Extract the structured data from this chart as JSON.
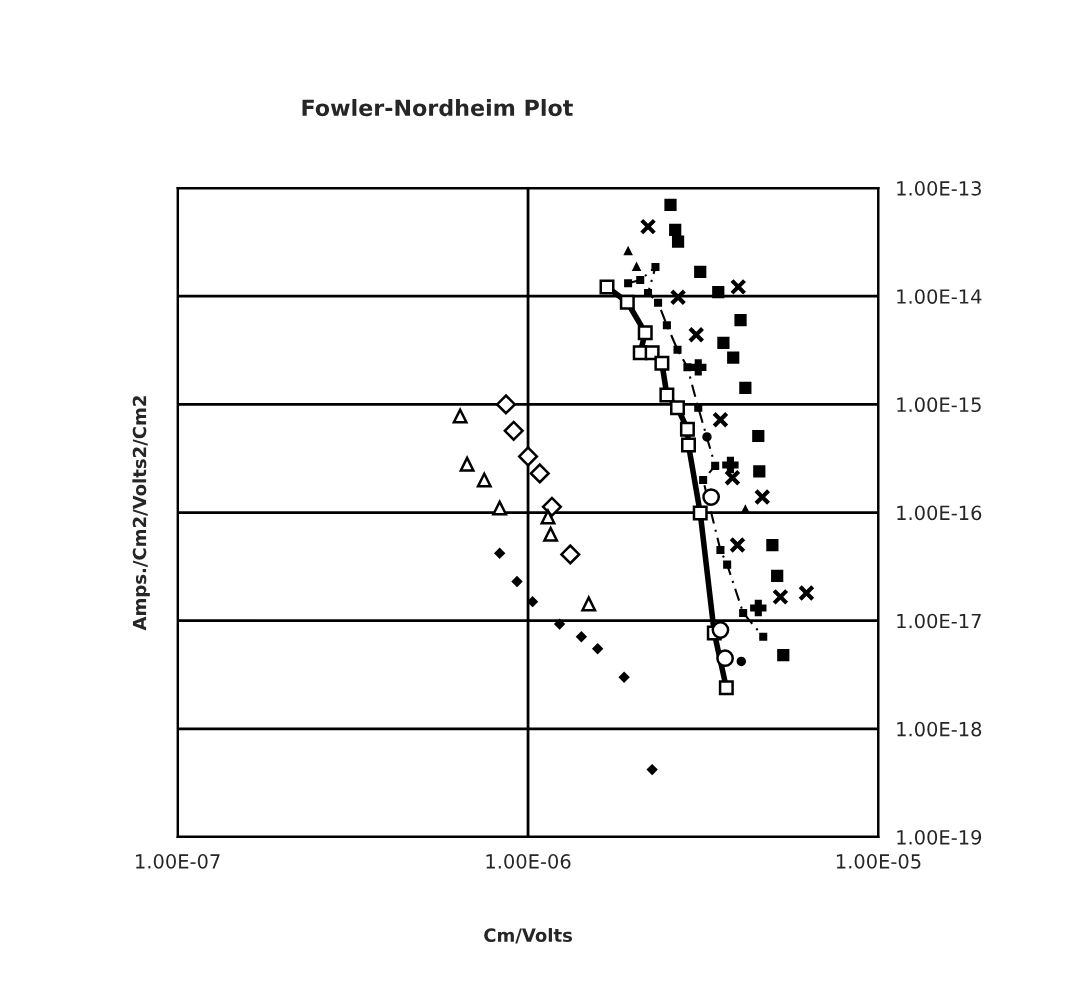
{
  "chart_data": {
    "type": "scatter",
    "title": "Fowler-Nordheim Plot",
    "xlabel": "Cm/Volts",
    "ylabel": "Amps./Cm2/Volts2/Cm2",
    "log": "xy",
    "grid": true,
    "legend": false,
    "xlim": [
      1e-07,
      1e-05
    ],
    "ylim": [
      1e-19,
      1e-13
    ],
    "xticks": [
      {
        "value": 1e-07,
        "label": "1.00E-07"
      },
      {
        "value": 1e-06,
        "label": "1.00E-06"
      },
      {
        "value": 1e-05,
        "label": "1.00E-05"
      }
    ],
    "yticks": [
      {
        "value": 1e-19,
        "label": "1.00E-19"
      },
      {
        "value": 1e-18,
        "label": "1.00E-18"
      },
      {
        "value": 1e-17,
        "label": "1.00E-17"
      },
      {
        "value": 1e-16,
        "label": "1.00E-16"
      },
      {
        "value": 1e-15,
        "label": "1.00E-15"
      },
      {
        "value": 1e-14,
        "label": "1.00E-14"
      },
      {
        "value": 1e-13,
        "label": "1.00E-13"
      }
    ],
    "series": [
      {
        "marker": "diamond",
        "color": "#000000",
        "x": [
          8.3e-07,
          9.3e-07,
          1.03e-06,
          1.23e-06,
          1.42e-06,
          1.58e-06,
          1.88e-06,
          2.26e-06
        ],
        "values": [
          4.2e-17,
          2.3e-17,
          1.5e-17,
          9.3e-18,
          7.1e-18,
          5.5e-18,
          3e-18,
          4.2e-19
        ]
      },
      {
        "marker": "diamond",
        "color": "#000000",
        "x": [
          8.65e-07,
          9.1e-07,
          1e-06,
          1.08e-06,
          1.17e-06,
          1.32e-06
        ],
        "values": [
          1e-15,
          5.7e-16,
          3.3e-16,
          2.3e-16,
          1.13e-16,
          4.1e-17
        ]
      },
      {
        "marker": "triangle",
        "color": "#000000",
        "x": [
          6.4e-07,
          6.7e-07,
          7.5e-07,
          8.3e-07,
          1.14e-06,
          1.16e-06,
          1.49e-06
        ],
        "values": [
          7.8e-16,
          2.8e-16,
          2e-16,
          1.1e-16,
          9.1e-17,
          6.3e-17,
          1.43e-17
        ]
      },
      {
        "type": "line",
        "line_style": "solid",
        "marker": "square",
        "color": "#000000",
        "x": [
          1.68e-06,
          1.92e-06,
          2.16e-06,
          2.09e-06,
          2.26e-06,
          2.41e-06,
          2.49e-06,
          2.67e-06,
          2.85e-06,
          2.87e-06,
          3.1e-06,
          3.4e-06,
          3.68e-06
        ],
        "values": [
          1.22e-14,
          8.8e-15,
          4.6e-15,
          3e-15,
          3e-15,
          2.4e-15,
          1.22e-15,
          9.3e-16,
          5.9e-16,
          4.2e-16,
          9.9e-17,
          7.7e-18,
          2.4e-18
        ]
      },
      {
        "marker": "circle",
        "color": "#000000",
        "x": [
          3.33e-06,
          3.54e-06,
          3.65e-06
        ],
        "values": [
          1.39e-16,
          8.2e-18,
          4.5e-18
        ]
      },
      {
        "marker": "circle",
        "color": "#000000",
        "x": [
          3.24e-06,
          4.06e-06
        ],
        "values": [
          5e-16,
          4.2e-18
        ]
      },
      {
        "type": "line",
        "line_style": "dashed",
        "marker": "square",
        "color": "#000000",
        "x": [
          1.93e-06,
          2.09e-06,
          2.31e-06,
          2.2e-06,
          2.35e-06,
          2.49e-06,
          2.67e-06,
          2.85e-06,
          3.06e-06,
          3.42e-06,
          3.16e-06,
          3.54e-06,
          3.7e-06,
          4.11e-06,
          4.69e-06
        ],
        "values": [
          1.32e-14,
          1.41e-14,
          1.86e-14,
          1.07e-14,
          8.7e-15,
          5.4e-15,
          3.2e-15,
          2.2e-15,
          9.3e-16,
          2.7e-16,
          2e-16,
          4.5e-17,
          3.3e-17,
          1.18e-17,
          7.1e-18
        ]
      },
      {
        "marker": "cross",
        "color": "#000000",
        "x": [
          2.2e-06,
          2.68e-06,
          3.02e-06,
          3.98e-06,
          3.54e-06,
          3.83e-06,
          3.96e-06,
          4.66e-06,
          5.25e-06,
          6.23e-06
        ],
        "values": [
          4.4e-14,
          9.8e-15,
          4.4e-15,
          1.22e-14,
          7.2e-16,
          2.1e-16,
          5e-17,
          1.39e-16,
          1.66e-17,
          1.8e-17
        ]
      },
      {
        "marker": "cross",
        "color": "#000000",
        "x": [
          3.06e-06,
          3.78e-06,
          4.54e-06
        ],
        "values": [
          2.2e-15,
          2.75e-16,
          1.31e-17
        ]
      },
      {
        "marker": "square",
        "color": "#000000",
        "x": [
          2.55e-06,
          2.63e-06,
          2.68e-06,
          3.1e-06,
          3.49e-06,
          4.04e-06,
          3.61e-06,
          3.85e-06,
          4.17e-06,
          4.54e-06,
          4.57e-06,
          4.98e-06,
          5.14e-06,
          5.35e-06
        ],
        "values": [
          7e-14,
          4.1e-14,
          3.2e-14,
          1.68e-14,
          1.09e-14,
          6e-15,
          3.7e-15,
          2.7e-15,
          1.42e-15,
          5.1e-16,
          2.4e-16,
          5e-17,
          2.6e-17,
          4.8e-18
        ]
      },
      {
        "marker": "triangle",
        "color": "#000000",
        "x": [
          1.93e-06,
          2.04e-06,
          4.17e-06
        ],
        "values": [
          2.6e-14,
          1.86e-14,
          1.06e-16
        ]
      }
    ]
  }
}
